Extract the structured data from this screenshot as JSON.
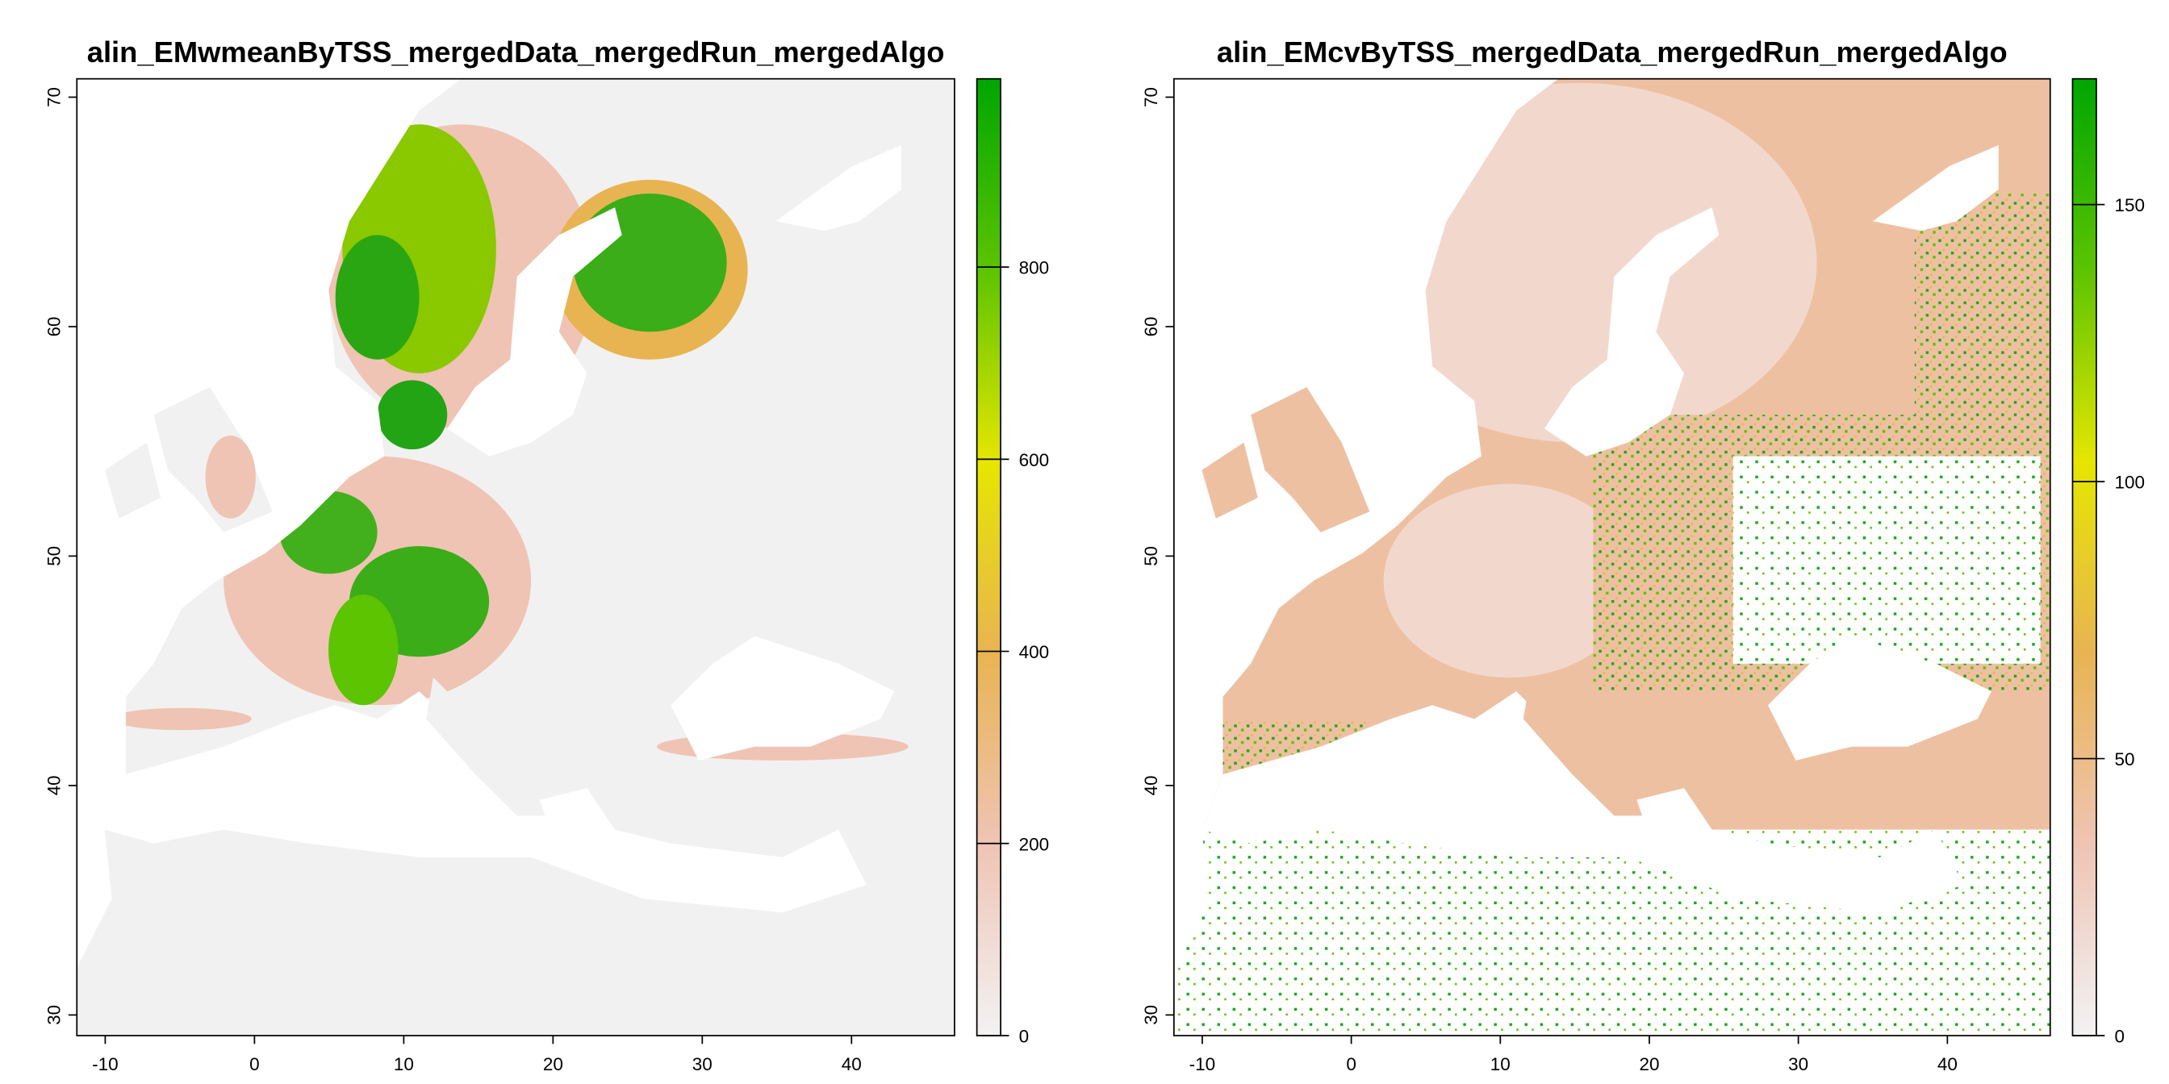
{
  "colorscale": [
    "#f2f2f2",
    "#efc4b4",
    "#e8b452",
    "#e6e600",
    "#5cc400",
    "#00a600"
  ],
  "panels": [
    {
      "title": "alin_EMwmeanByTSS_mergedData_mergedRun_mergedAlgo",
      "xlim": [
        -11.9,
        46.9
      ],
      "xticks": [
        -10,
        0,
        10,
        20,
        30,
        40
      ],
      "ylim": [
        29.1,
        70.8
      ],
      "yticks": [
        30,
        40,
        50,
        60,
        70
      ],
      "zlim": [
        0,
        996
      ],
      "zticks": [
        0,
        200,
        400,
        600,
        800
      ]
    },
    {
      "title": "alin_EMcvByTSS_mergedData_mergedRun_mergedAlgo",
      "xlim": [
        -11.9,
        46.9
      ],
      "xticks": [
        -10,
        0,
        10,
        20,
        30,
        40
      ],
      "ylim": [
        29.1,
        70.8
      ],
      "yticks": [
        30,
        40,
        50,
        60,
        70
      ],
      "zlim": [
        0,
        172.7
      ],
      "zticks": [
        0,
        50,
        100,
        150
      ]
    }
  ]
}
